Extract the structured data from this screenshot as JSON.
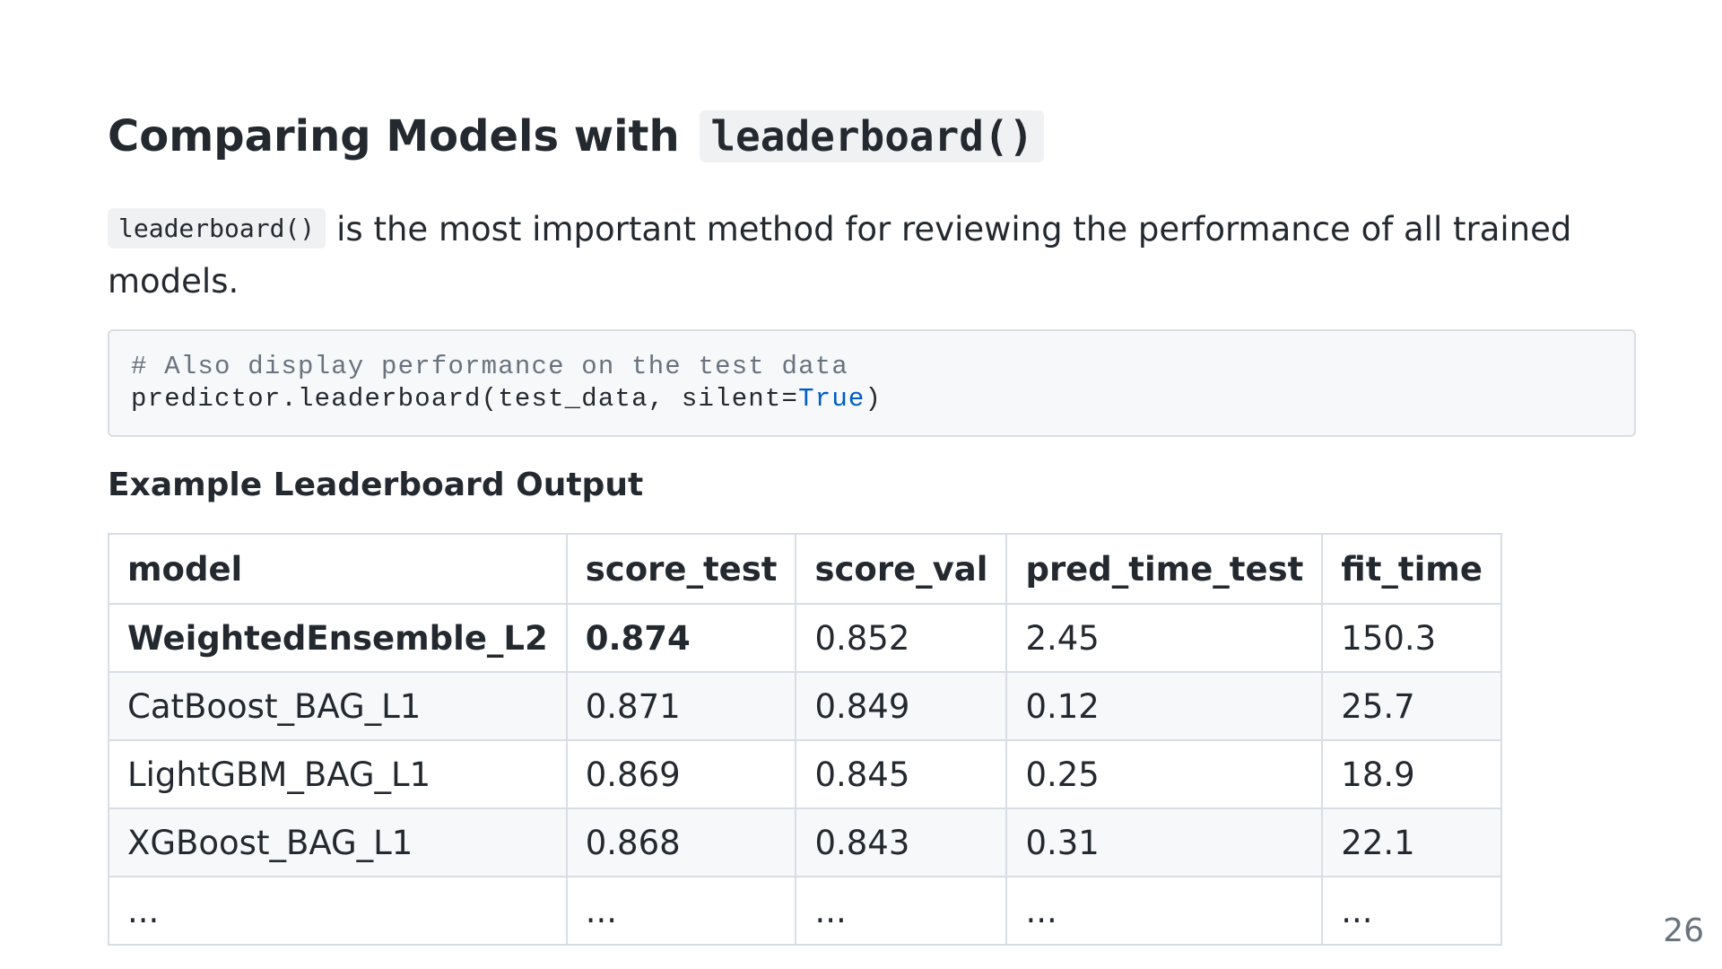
{
  "title": {
    "text": "Comparing Models with",
    "code": "leaderboard()"
  },
  "intro": {
    "code": "leaderboard()",
    "text": "is the most important method for reviewing the performance of all trained models."
  },
  "code_block": {
    "comment": "# Also display performance on the test data",
    "line_prefix": "predictor.leaderboard(test_data, silent=",
    "keyword": "True",
    "line_suffix": ")"
  },
  "subheading": "Example Leaderboard Output",
  "table": {
    "headers": [
      "model",
      "score_test",
      "score_val",
      "pred_time_test",
      "fit_time"
    ],
    "rows": [
      [
        "WeightedEnsemble_L2",
        "0.874",
        "0.852",
        "2.45",
        "150.3"
      ],
      [
        "CatBoost_BAG_L1",
        "0.871",
        "0.849",
        "0.12",
        "25.7"
      ],
      [
        "LightGBM_BAG_L1",
        "0.869",
        "0.845",
        "0.25",
        "18.9"
      ],
      [
        "XGBoost_BAG_L1",
        "0.868",
        "0.843",
        "0.31",
        "22.1"
      ],
      [
        "...",
        "...",
        "...",
        "...",
        "..."
      ]
    ]
  },
  "page_number": "26"
}
